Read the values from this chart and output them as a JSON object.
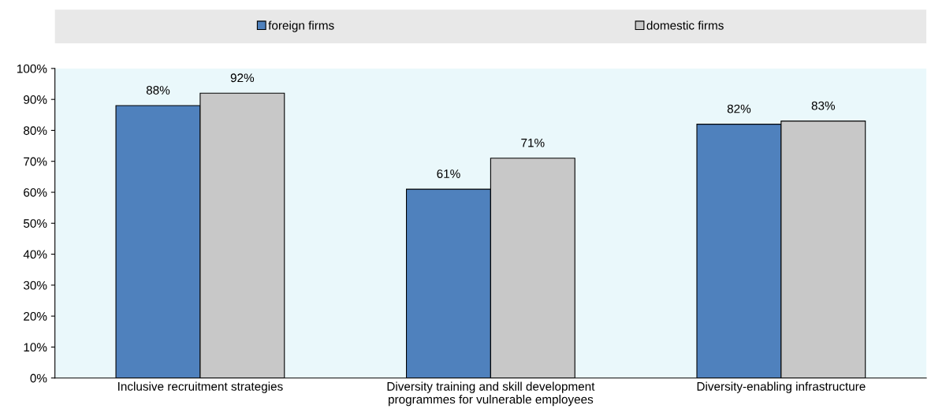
{
  "chart_data": {
    "type": "bar",
    "categories": [
      "Inclusive recruitment strategies",
      "Diversity training and skill development\nprogrammes for vulnerable employees",
      "Diversity-enabling infrastructure"
    ],
    "series": [
      {
        "name": "foreign firms",
        "color": "#4f81bd",
        "values": [
          88,
          61,
          82
        ],
        "value_labels": [
          "88%",
          "61%",
          "82%"
        ]
      },
      {
        "name": "domestic firms",
        "color": "#c8c8c8",
        "values": [
          92,
          71,
          83
        ],
        "value_labels": [
          "92%",
          "71%",
          "83%"
        ]
      }
    ],
    "ylim": [
      0,
      100
    ],
    "yticks": [
      {
        "value": 0,
        "label": "0%"
      },
      {
        "value": 10,
        "label": "10%"
      },
      {
        "value": 20,
        "label": "20%"
      },
      {
        "value": 30,
        "label": "30%"
      },
      {
        "value": 40,
        "label": "40%"
      },
      {
        "value": 50,
        "label": "50%"
      },
      {
        "value": 60,
        "label": "60%"
      },
      {
        "value": 70,
        "label": "70%"
      },
      {
        "value": 80,
        "label": "80%"
      },
      {
        "value": 90,
        "label": "90%"
      },
      {
        "value": 100,
        "label": "100%"
      }
    ],
    "grid": false,
    "legend": "top"
  }
}
